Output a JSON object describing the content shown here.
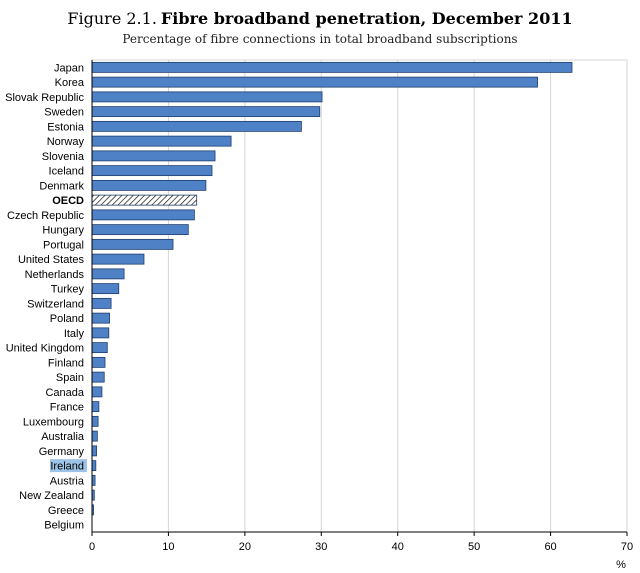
{
  "figure": {
    "label": "Figure 2.1.",
    "title": "Fibre broadband penetration, December 2011",
    "subtitle": "Percentage of fibre connections in total broadband subscriptions"
  },
  "colors": {
    "bar": "#4f81c7",
    "bar_edge": "#1f3f6e",
    "highlight_bar": "#ffffff",
    "highlight_label_bg": "#9ec3e8",
    "grid": "#d6d6d6",
    "axis": "#000000"
  },
  "chart_data": {
    "type": "bar",
    "orientation": "horizontal",
    "title": "Fibre broadband penetration, December 2011",
    "subtitle": "Percentage of fibre connections in total broadband subscriptions",
    "xlabel": "%",
    "ylabel": "",
    "xlim": [
      0,
      70
    ],
    "xticks": [
      0,
      10,
      20,
      30,
      40,
      50,
      60,
      70
    ],
    "grid": true,
    "categories": [
      "Japan",
      "Korea",
      "Slovak Republic",
      "Sweden",
      "Estonia",
      "Norway",
      "Slovenia",
      "Iceland",
      "Denmark",
      "OECD",
      "Czech Republic",
      "Hungary",
      "Portugal",
      "United States",
      "Netherlands",
      "Turkey",
      "Switzerland",
      "Poland",
      "Italy",
      "United Kingdom",
      "Finland",
      "Spain",
      "Canada",
      "France",
      "Luxembourg",
      "Australia",
      "Germany",
      "Ireland",
      "Austria",
      "New Zealand",
      "Greece",
      "Belgium"
    ],
    "values": [
      62.8,
      58.3,
      30.1,
      29.8,
      27.4,
      18.2,
      16.1,
      15.7,
      14.9,
      13.7,
      13.4,
      12.6,
      10.6,
      6.8,
      4.2,
      3.5,
      2.5,
      2.3,
      2.2,
      2.0,
      1.7,
      1.6,
      1.3,
      0.9,
      0.8,
      0.7,
      0.6,
      0.5,
      0.4,
      0.3,
      0.2,
      0.0
    ],
    "highlight": {
      "OECD": "hatched",
      "Ireland": "label-highlighted"
    }
  }
}
